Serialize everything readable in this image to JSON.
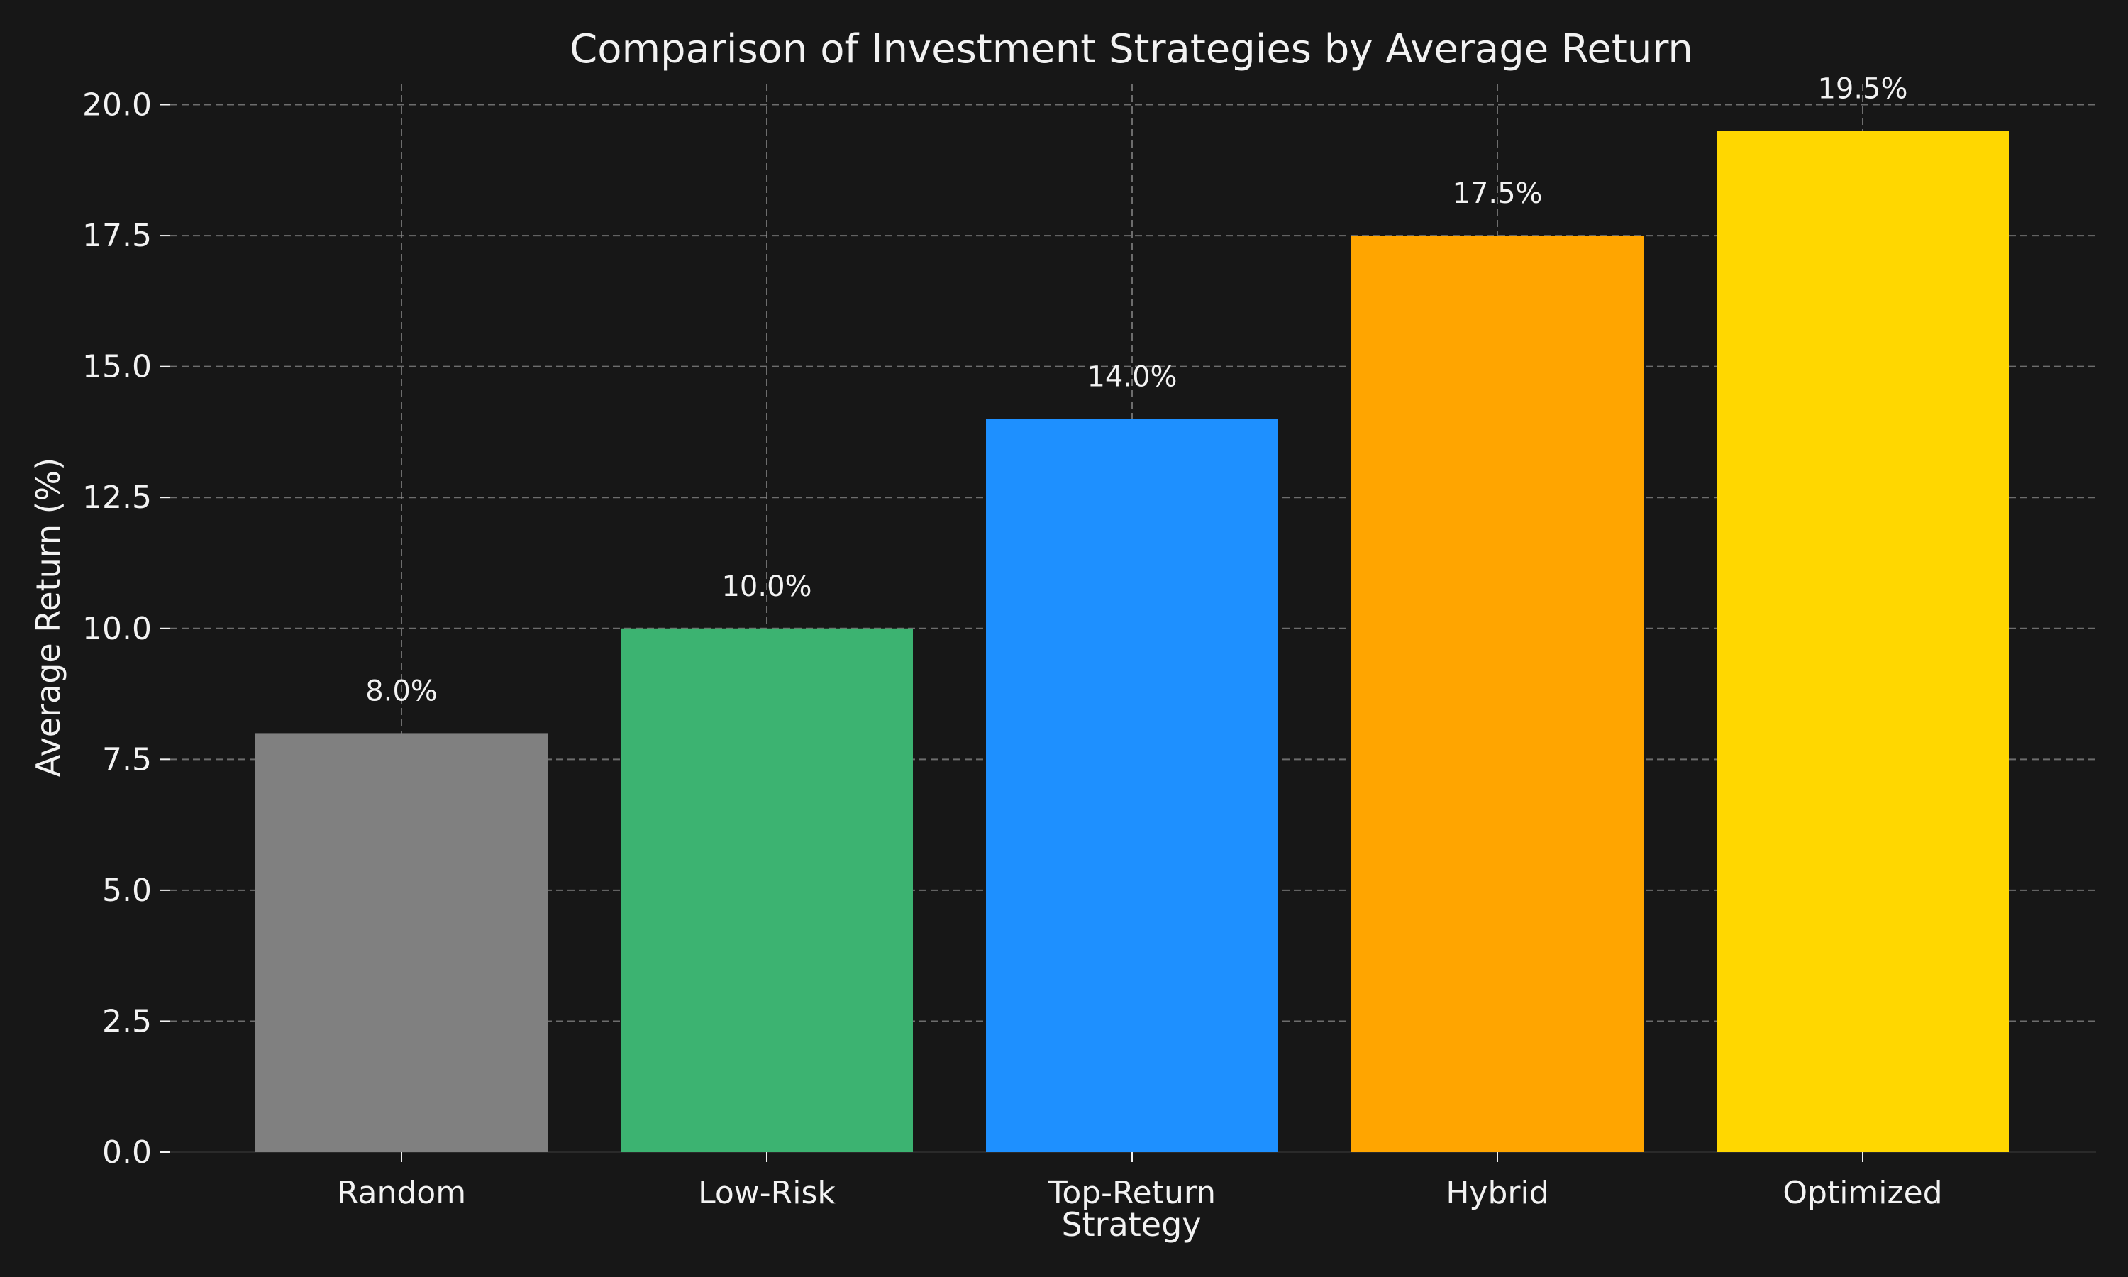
{
  "chart_data": {
    "type": "bar",
    "title": "Comparison of Investment Strategies by Average Return",
    "xlabel": "Strategy",
    "ylabel": "Average Return (%)",
    "categories": [
      "Random",
      "Low-Risk",
      "Top-Return",
      "Hybrid",
      "Optimized"
    ],
    "values": [
      8.0,
      10.0,
      14.0,
      17.5,
      19.5
    ],
    "data_labels": [
      "8.0%",
      "10.0%",
      "14.0%",
      "17.5%",
      "19.5%"
    ],
    "colors": [
      "#808080",
      "#3CB371",
      "#1E90FF",
      "#FFA500",
      "#FFD700"
    ],
    "yticks": [
      "0.0",
      "2.5",
      "5.0",
      "7.5",
      "10.0",
      "12.5",
      "15.0",
      "17.5",
      "20.0"
    ],
    "ylim": [
      0,
      20.4
    ],
    "grid": true,
    "grid_style": "dashed",
    "background": "#171717"
  }
}
